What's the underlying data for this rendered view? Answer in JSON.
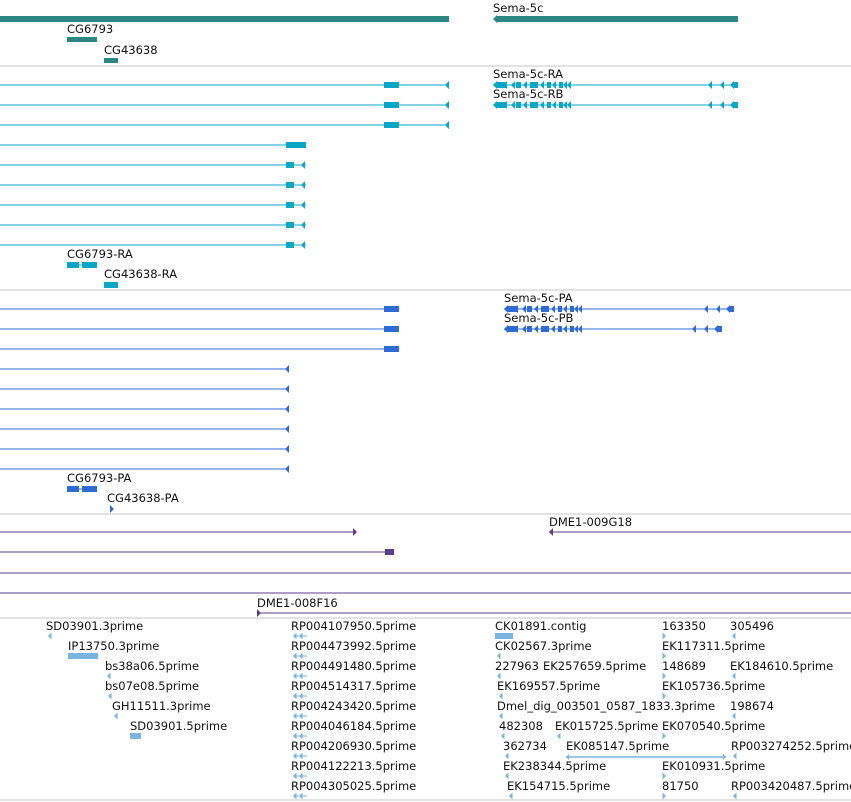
{
  "viewer": {
    "colors": {
      "gene": "#2c8783",
      "transcript_rna": "#0aa6c5",
      "transcript_protein": "#2f6bd4",
      "bac": "#5a3c8e",
      "est": "#79b5df",
      "separator": "#c4c4c4"
    },
    "gene_track": {
      "genes": [
        {
          "name": "Sema-5c"
        },
        {
          "name": "CG6793"
        },
        {
          "name": "CG43638"
        }
      ]
    },
    "rna_track": {
      "transcripts": [
        {
          "name": "Sema-5c-RA"
        },
        {
          "name": "Sema-5c-RB"
        },
        {
          "name": "CG6793-RA"
        },
        {
          "name": "CG43638-RA"
        }
      ]
    },
    "protein_track": {
      "transcripts": [
        {
          "name": "Sema-5c-PA"
        },
        {
          "name": "Sema-5c-PB"
        },
        {
          "name": "CG6793-PA"
        },
        {
          "name": "CG43638-PA"
        }
      ]
    },
    "bac_track": {
      "clones": [
        {
          "name": "DME1-009G18"
        },
        {
          "name": "DME1-008F16"
        }
      ]
    },
    "est_track": {
      "features": [
        {
          "name": "SD03901.3prime"
        },
        {
          "name": "IP13750.3prime"
        },
        {
          "name": "bs38a06.5prime"
        },
        {
          "name": "bs07e08.5prime"
        },
        {
          "name": "GH11511.3prime"
        },
        {
          "name": "SD03901.5prime"
        },
        {
          "name": "RP004107950.5prime"
        },
        {
          "name": "RP004473992.5prime"
        },
        {
          "name": "RP004491480.5prime"
        },
        {
          "name": "RP004514317.5prime"
        },
        {
          "name": "RP004243420.5prime"
        },
        {
          "name": "RP004046184.5prime"
        },
        {
          "name": "RP004206930.5prime"
        },
        {
          "name": "RP004122213.5prime"
        },
        {
          "name": "RP004305025.5prime"
        },
        {
          "name": "CK01891.contig"
        },
        {
          "name": "CK02567.3prime"
        },
        {
          "name": "227963"
        },
        {
          "name": "EK257659.5prime"
        },
        {
          "name": "EK169557.5prime"
        },
        {
          "name": "Dmel_dig_003501_0587_1833.3prime"
        },
        {
          "name": "482308"
        },
        {
          "name": "EK015725.5prime"
        },
        {
          "name": "362734"
        },
        {
          "name": "EK085147.5prime"
        },
        {
          "name": "EK238344.5prime"
        },
        {
          "name": "EK154715.5prime"
        },
        {
          "name": "163350"
        },
        {
          "name": "305496"
        },
        {
          "name": "EK117311.5prime"
        },
        {
          "name": "148689"
        },
        {
          "name": "EK184610.5prime"
        },
        {
          "name": "EK105736.5prime"
        },
        {
          "name": "EK070540.5prime"
        },
        {
          "name": "198674"
        },
        {
          "name": "EK010931.5prime"
        },
        {
          "name": "RP003274252.5prime"
        },
        {
          "name": "81750"
        },
        {
          "name": "RP003420487.5prime"
        }
      ]
    }
  }
}
